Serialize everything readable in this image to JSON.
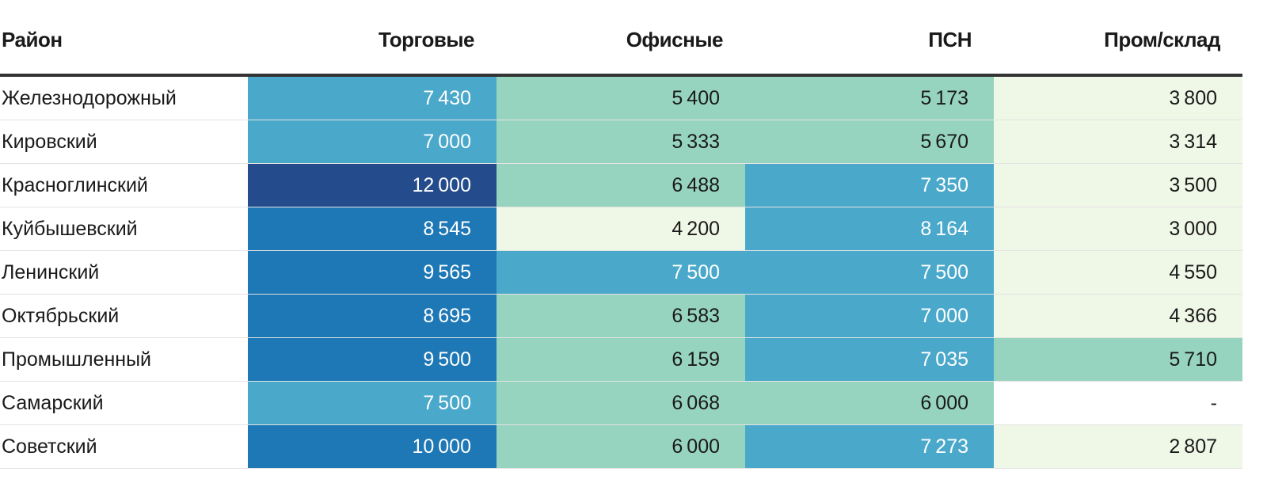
{
  "chart_data": {
    "type": "heatmap",
    "columns": [
      "Район",
      "Торговые",
      "Офисные",
      "ПСН",
      "Пром/склад"
    ],
    "rows": [
      {
        "name": "Железнодорожный",
        "values": [
          7430,
          5400,
          5173,
          3800
        ]
      },
      {
        "name": "Кировский",
        "values": [
          7000,
          5333,
          5670,
          3314
        ]
      },
      {
        "name": "Красноглинский",
        "values": [
          12000,
          6488,
          7350,
          3500
        ]
      },
      {
        "name": "Куйбышевский",
        "values": [
          8545,
          4200,
          8164,
          3000
        ]
      },
      {
        "name": "Ленинский",
        "values": [
          9565,
          7500,
          7500,
          4550
        ]
      },
      {
        "name": "Октябрьский",
        "values": [
          8695,
          6583,
          7000,
          4366
        ]
      },
      {
        "name": "Промышленный",
        "values": [
          9500,
          6159,
          7035,
          5710
        ]
      },
      {
        "name": "Самарский",
        "values": [
          7500,
          6068,
          6000,
          null
        ]
      },
      {
        "name": "Советский",
        "values": [
          10000,
          6000,
          7273,
          2807
        ]
      }
    ],
    "missing_label": "-",
    "color_scale": [
      {
        "min": 0,
        "color": "#eff7e6",
        "text": "#1a1a1a"
      },
      {
        "min": 5000,
        "color": "#97d4c0",
        "text": "#1a1a1a"
      },
      {
        "min": 7000,
        "color": "#4aa8cb",
        "text": "#ffffff"
      },
      {
        "min": 8500,
        "color": "#1e78b6",
        "text": "#ffffff"
      },
      {
        "min": 12000,
        "color": "#244b8c",
        "text": "#ffffff"
      }
    ]
  }
}
